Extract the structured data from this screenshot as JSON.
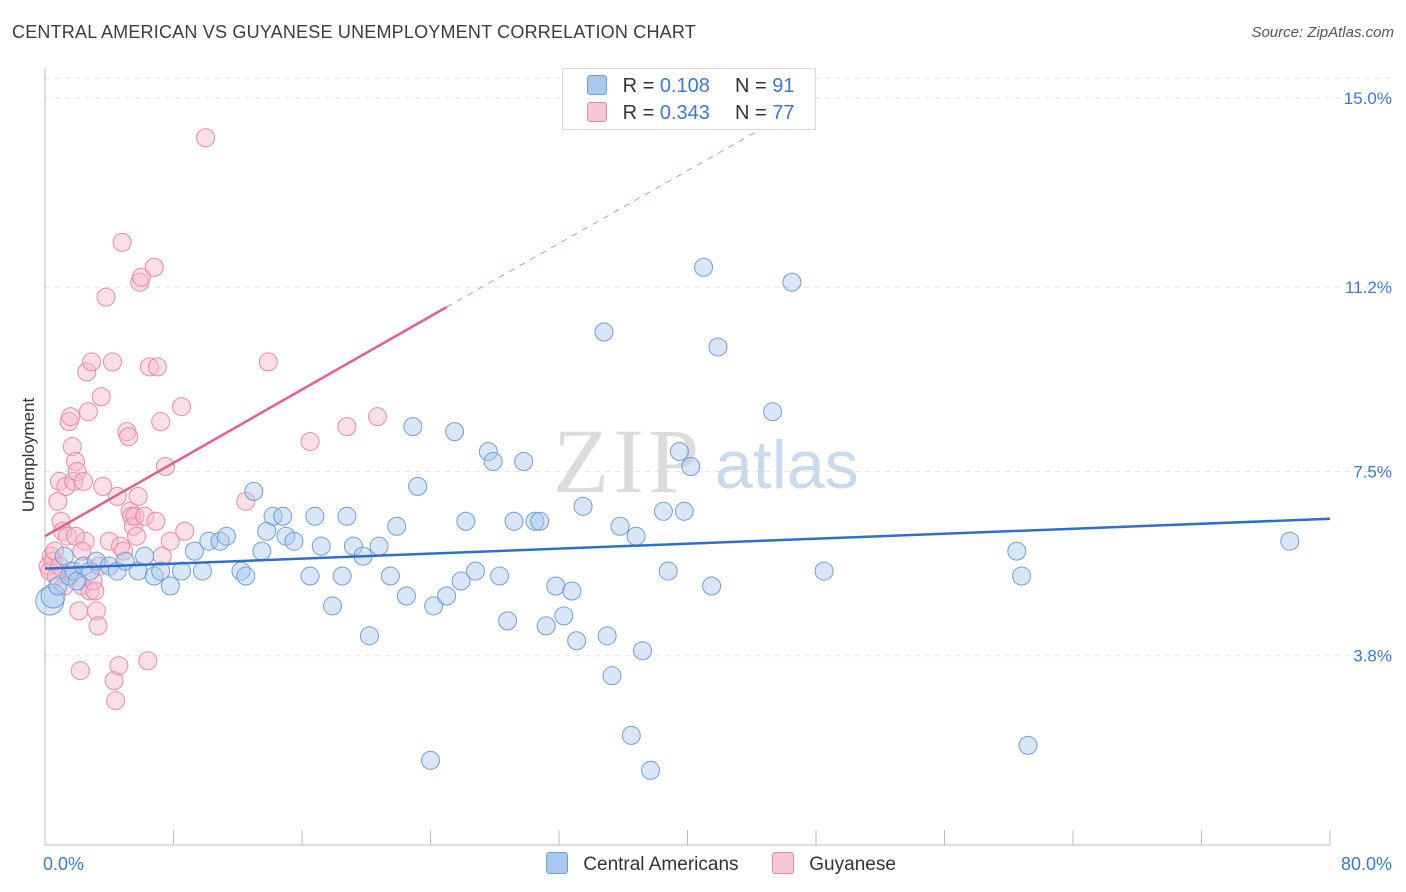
{
  "header": {
    "title": "CENTRAL AMERICAN VS GUYANESE UNEMPLOYMENT CORRELATION CHART",
    "source": "Source: ZipAtlas.com"
  },
  "legend": {
    "series": [
      {
        "r_label": "R =",
        "r_value": "0.108",
        "n_label": "N =",
        "n_value": "91"
      },
      {
        "r_label": "R =",
        "r_value": "0.343",
        "n_label": "N =",
        "n_value": "77"
      }
    ]
  },
  "bottom_legend": {
    "central": "Central Americans",
    "guyanese": "Guyanese"
  },
  "watermark": {
    "zip": "ZIP",
    "atlas": "atlas"
  },
  "colors": {
    "central_fill": "#a9c8ee",
    "central_stroke": "#6f9fd8",
    "central_line": "#2f6fcc",
    "guyanese_fill": "#f7b8ca",
    "guyanese_stroke": "#e88aa6",
    "guyanese_line": "#e0608c",
    "tick_text": "#3b78d0",
    "grid": "#e4e4e4"
  },
  "chart_data": {
    "type": "scatter",
    "title": "CENTRAL AMERICAN VS GUYANESE UNEMPLOYMENT CORRELATION CHART",
    "xlabel": "",
    "ylabel": "Unemployment",
    "xlim": [
      0,
      80
    ],
    "ylim": [
      0.0,
      15.4
    ],
    "x_tick_labels": [
      "0.0%",
      "80.0%"
    ],
    "y_ticks": [
      3.8,
      7.5,
      11.2,
      15.0
    ],
    "y_tick_labels": [
      "3.8%",
      "7.5%",
      "11.2%",
      "15.0%"
    ],
    "series": [
      {
        "name": "Central Americans",
        "r": 0.108,
        "n": 91,
        "trend": {
          "x0": 0,
          "y0": 5.55,
          "x1": 80,
          "y1": 6.55
        },
        "points": [
          [
            0.3,
            4.9,
            3
          ],
          [
            0.5,
            5.0,
            2
          ],
          [
            0.8,
            5.2,
            1
          ],
          [
            1.2,
            5.8,
            1
          ],
          [
            1.5,
            5.4,
            1
          ],
          [
            1.8,
            5.5,
            1
          ],
          [
            2.0,
            5.3,
            1
          ],
          [
            2.4,
            5.6,
            1
          ],
          [
            2.8,
            5.5,
            1
          ],
          [
            3.2,
            5.7,
            1
          ],
          [
            4.0,
            5.6,
            1
          ],
          [
            4.5,
            5.5,
            1
          ],
          [
            5.0,
            5.7,
            1
          ],
          [
            5.8,
            5.5,
            1
          ],
          [
            6.2,
            5.8,
            1
          ],
          [
            6.8,
            5.4,
            1
          ],
          [
            7.2,
            5.5,
            1
          ],
          [
            7.8,
            5.2,
            1
          ],
          [
            8.5,
            5.5,
            1
          ],
          [
            9.3,
            5.9,
            1
          ],
          [
            9.8,
            5.5,
            1
          ],
          [
            10.2,
            6.1,
            1
          ],
          [
            10.9,
            6.1,
            1
          ],
          [
            11.3,
            6.2,
            1
          ],
          [
            12.2,
            5.5,
            1
          ],
          [
            12.5,
            5.4,
            1
          ],
          [
            13.0,
            7.1,
            1
          ],
          [
            13.5,
            5.9,
            1
          ],
          [
            13.8,
            6.3,
            1
          ],
          [
            14.2,
            6.6,
            1
          ],
          [
            14.8,
            6.6,
            1
          ],
          [
            15.0,
            6.2,
            1
          ],
          [
            15.5,
            6.1,
            1
          ],
          [
            16.5,
            5.4,
            1
          ],
          [
            16.8,
            6.6,
            1
          ],
          [
            17.2,
            6.0,
            1
          ],
          [
            17.9,
            4.8,
            1
          ],
          [
            18.5,
            5.4,
            1
          ],
          [
            18.8,
            6.6,
            1
          ],
          [
            19.2,
            6.0,
            1
          ],
          [
            19.8,
            5.8,
            1
          ],
          [
            20.2,
            4.2,
            1
          ],
          [
            20.8,
            6.0,
            1
          ],
          [
            21.5,
            5.4,
            1
          ],
          [
            21.9,
            6.4,
            1
          ],
          [
            22.5,
            5.0,
            1
          ],
          [
            22.9,
            8.4,
            1
          ],
          [
            23.2,
            7.2,
            1
          ],
          [
            24.0,
            1.7,
            1
          ],
          [
            24.2,
            4.8,
            1
          ],
          [
            25.0,
            5.0,
            1
          ],
          [
            25.5,
            8.3,
            1
          ],
          [
            25.9,
            5.3,
            1
          ],
          [
            26.2,
            6.5,
            1
          ],
          [
            26.8,
            5.5,
            1
          ],
          [
            27.6,
            7.9,
            1
          ],
          [
            27.9,
            7.7,
            1
          ],
          [
            28.3,
            5.4,
            1
          ],
          [
            28.8,
            4.5,
            1
          ],
          [
            29.2,
            6.5,
            1
          ],
          [
            29.8,
            7.7,
            1
          ],
          [
            30.5,
            6.5,
            1
          ],
          [
            30.8,
            6.5,
            1
          ],
          [
            31.2,
            4.4,
            1
          ],
          [
            31.8,
            5.2,
            1
          ],
          [
            32.3,
            4.6,
            1
          ],
          [
            32.8,
            5.1,
            1
          ],
          [
            33.1,
            4.1,
            1
          ],
          [
            33.5,
            6.8,
            1
          ],
          [
            34.8,
            10.3,
            1
          ],
          [
            35.0,
            4.2,
            1
          ],
          [
            35.3,
            3.4,
            1
          ],
          [
            35.8,
            6.4,
            1
          ],
          [
            36.5,
            2.2,
            1
          ],
          [
            36.8,
            6.2,
            1
          ],
          [
            37.2,
            3.9,
            1
          ],
          [
            37.7,
            1.5,
            1
          ],
          [
            38.5,
            6.7,
            1
          ],
          [
            38.8,
            5.5,
            1
          ],
          [
            39.5,
            7.9,
            1
          ],
          [
            39.8,
            6.7,
            1
          ],
          [
            40.2,
            7.6,
            1
          ],
          [
            41.0,
            11.6,
            1
          ],
          [
            41.5,
            5.2,
            1
          ],
          [
            41.9,
            10.0,
            1
          ],
          [
            45.3,
            8.7,
            1
          ],
          [
            46.5,
            11.3,
            1
          ],
          [
            48.5,
            5.5,
            1
          ],
          [
            60.5,
            5.9,
            1
          ],
          [
            60.8,
            5.4,
            1
          ],
          [
            61.2,
            2.0,
            1
          ],
          [
            77.5,
            6.1,
            1
          ]
        ]
      },
      {
        "name": "Guyanese",
        "r": 0.343,
        "n": 77,
        "trend": {
          "x0": 0,
          "y0": 6.2,
          "x1": 25,
          "y1": 10.8
        },
        "trend_dashed": {
          "x0": 25,
          "y0": 10.8,
          "x1": 48,
          "y1": 15.0
        },
        "points": [
          [
            0.2,
            5.6,
            1
          ],
          [
            0.3,
            5.5,
            1
          ],
          [
            0.4,
            5.8,
            1
          ],
          [
            0.5,
            5.7,
            1
          ],
          [
            0.6,
            5.9,
            1
          ],
          [
            0.7,
            5.4,
            1
          ],
          [
            0.8,
            6.9,
            1
          ],
          [
            0.9,
            7.3,
            1
          ],
          [
            1.0,
            6.5,
            1
          ],
          [
            1.1,
            6.3,
            1
          ],
          [
            1.2,
            5.2,
            1
          ],
          [
            1.3,
            7.2,
            1
          ],
          [
            1.4,
            6.2,
            1
          ],
          [
            1.5,
            8.5,
            1
          ],
          [
            1.6,
            8.6,
            1
          ],
          [
            1.7,
            8.0,
            1
          ],
          [
            1.8,
            7.3,
            1
          ],
          [
            1.9,
            7.7,
            1
          ],
          [
            2.0,
            7.5,
            1
          ],
          [
            2.1,
            4.7,
            1
          ],
          [
            2.2,
            3.5,
            1
          ],
          [
            2.3,
            5.2,
            1
          ],
          [
            2.4,
            7.3,
            1
          ],
          [
            2.5,
            6.1,
            1
          ],
          [
            2.6,
            9.5,
            1
          ],
          [
            2.7,
            8.7,
            1
          ],
          [
            2.8,
            5.1,
            1
          ],
          [
            2.9,
            9.7,
            1
          ],
          [
            3.0,
            5.3,
            1
          ],
          [
            3.1,
            5.1,
            1
          ],
          [
            3.2,
            4.7,
            1
          ],
          [
            3.3,
            4.4,
            1
          ],
          [
            3.4,
            5.6,
            1
          ],
          [
            3.5,
            9.0,
            1
          ],
          [
            3.6,
            7.2,
            1
          ],
          [
            3.8,
            11.0,
            1
          ],
          [
            4.0,
            6.1,
            1
          ],
          [
            4.2,
            9.7,
            1
          ],
          [
            4.3,
            3.3,
            1
          ],
          [
            4.4,
            2.9,
            1
          ],
          [
            4.5,
            7.0,
            1
          ],
          [
            4.6,
            3.6,
            1
          ],
          [
            4.7,
            6.0,
            1
          ],
          [
            4.8,
            12.1,
            1
          ],
          [
            4.9,
            5.9,
            1
          ],
          [
            5.1,
            8.3,
            1
          ],
          [
            5.2,
            8.2,
            1
          ],
          [
            5.3,
            6.7,
            1
          ],
          [
            5.4,
            6.6,
            1
          ],
          [
            5.5,
            6.4,
            1
          ],
          [
            5.6,
            6.6,
            1
          ],
          [
            5.7,
            6.2,
            1
          ],
          [
            5.8,
            7.0,
            1
          ],
          [
            5.9,
            11.3,
            1
          ],
          [
            6.0,
            11.4,
            1
          ],
          [
            6.2,
            6.6,
            1
          ],
          [
            6.4,
            3.7,
            1
          ],
          [
            6.5,
            9.6,
            1
          ],
          [
            6.8,
            11.6,
            1
          ],
          [
            6.9,
            6.5,
            1
          ],
          [
            7.0,
            9.6,
            1
          ],
          [
            7.2,
            8.5,
            1
          ],
          [
            7.3,
            5.8,
            1
          ],
          [
            7.5,
            7.6,
            1
          ],
          [
            7.8,
            6.1,
            1
          ],
          [
            8.5,
            8.8,
            1
          ],
          [
            8.7,
            6.3,
            1
          ],
          [
            10.0,
            14.2,
            1
          ],
          [
            12.5,
            6.9,
            1
          ],
          [
            13.9,
            9.7,
            1
          ],
          [
            16.5,
            8.1,
            1
          ],
          [
            18.8,
            8.4,
            1
          ],
          [
            20.7,
            8.6,
            1
          ],
          [
            1.9,
            6.2,
            1
          ],
          [
            2.3,
            5.9,
            1
          ],
          [
            0.9,
            5.6,
            1
          ],
          [
            1.6,
            5.5,
            1
          ]
        ]
      }
    ]
  }
}
